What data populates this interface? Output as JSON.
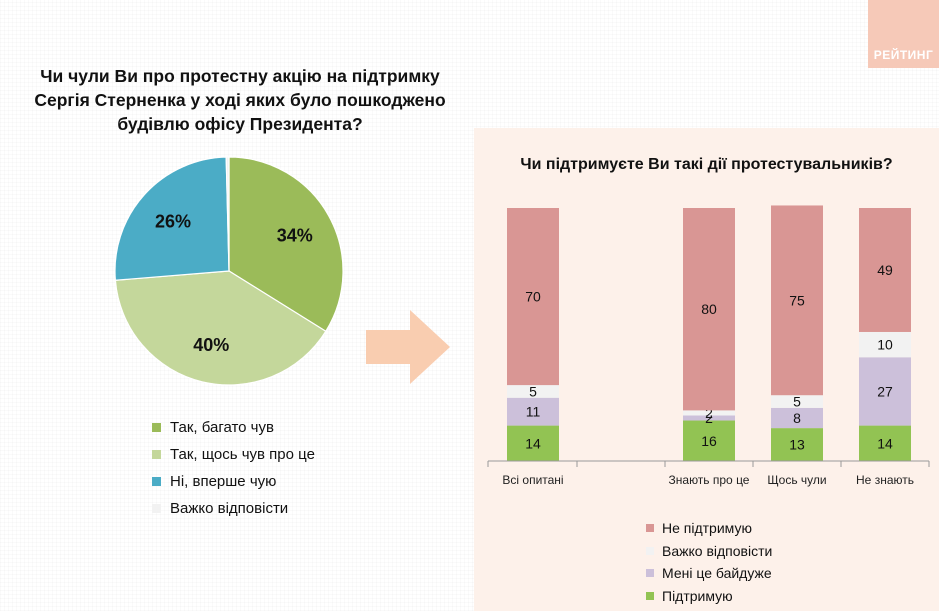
{
  "brand": "РЕЙТИНГ",
  "chart_data": [
    {
      "type": "pie",
      "title": "Чи чули Ви про протестну акцію на підтримку Сергія Стерненка у ході яких було пошкоджено будівлю офісу Президента?",
      "slices": [
        {
          "name": "Так, багато чув",
          "value": 34,
          "label": "34%",
          "color": "#9bbb59"
        },
        {
          "name": "Так, щось чув про це",
          "value": 40,
          "label": "40%",
          "color": "#c4d79b"
        },
        {
          "name": "Ні, вперше чую",
          "value": 26,
          "label": "26%",
          "color": "#4bacc6"
        },
        {
          "name": "Важко відповісти",
          "value": 0.4,
          "label": "",
          "color": "#f2f2f2"
        }
      ],
      "legend": "bottom"
    },
    {
      "type": "bar",
      "stacked": true,
      "title": "Чи підтримуєте Ви такі дії протестувальників?",
      "categories": [
        "Всі опитані",
        "Знають про це",
        "Щось чули",
        "Не знають"
      ],
      "series": [
        {
          "name": "Підтримую",
          "color": "#92c353",
          "values": [
            14,
            16,
            13,
            14
          ]
        },
        {
          "name": "Мені це байдуже",
          "color": "#ccc0da",
          "values": [
            11,
            2,
            8,
            27
          ]
        },
        {
          "name": "Важко відповісти",
          "color": "#f2f2f2",
          "values": [
            5,
            2,
            5,
            10
          ]
        },
        {
          "name": "Не підтримую",
          "color": "#d99694",
          "values": [
            70,
            80,
            75,
            49
          ]
        }
      ],
      "legend_order": [
        "Не підтримую",
        "Важко відповісти",
        "Мені це байдуже",
        "Підтримую"
      ],
      "ylim": [
        0,
        100
      ],
      "legend": "bottom"
    }
  ]
}
